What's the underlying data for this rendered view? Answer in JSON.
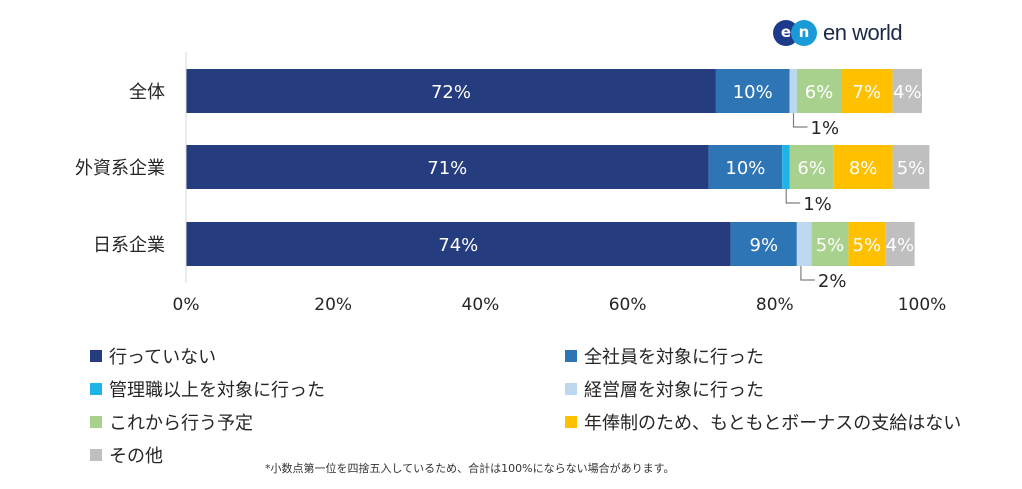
{
  "logo": {
    "mark": "en",
    "text": "en world"
  },
  "footnote": "*小数点第一位を四捨五入しているため、合計は100%にならない場合があります。",
  "chart_data": {
    "type": "bar",
    "orientation": "horizontal",
    "stacked": true,
    "percent_stacked": true,
    "categories": [
      "全体",
      "外資系企業",
      "日系企業"
    ],
    "series": [
      {
        "name": "行っていない",
        "color": "#253c7e",
        "values": [
          72,
          71,
          74
        ],
        "labels": [
          "72%",
          "71%",
          "74%"
        ]
      },
      {
        "name": "全社員を対象に行った",
        "color": "#2e75b6",
        "values": [
          10,
          10,
          9
        ],
        "labels": [
          "10%",
          "10%",
          "9%"
        ]
      },
      {
        "name": "管理職以上を対象に行った",
        "color": "#1fb4e8",
        "values": [
          0,
          1,
          0
        ],
        "labels": [
          "",
          "",
          ""
        ]
      },
      {
        "name": "経営層を対象に行った",
        "color": "#bdd7ee",
        "values": [
          1,
          0,
          2
        ],
        "labels": [
          "",
          "",
          ""
        ]
      },
      {
        "name": "これから行う予定",
        "color": "#a9d18e",
        "values": [
          6,
          6,
          5
        ],
        "labels": [
          "6%",
          "6%",
          "5%"
        ]
      },
      {
        "name": "年俸制のため、もともとボーナスの支給はない",
        "color": "#ffc000",
        "values": [
          7,
          8,
          5
        ],
        "labels": [
          "7%",
          "8%",
          "5%"
        ]
      },
      {
        "name": "その他",
        "color": "#bfbfbf",
        "values": [
          4,
          5,
          4
        ],
        "labels": [
          "4%",
          "5%",
          "4%"
        ]
      }
    ],
    "callouts": [
      {
        "category": 0,
        "series": 3,
        "text": "1%"
      },
      {
        "category": 1,
        "series": 2,
        "text": "1%"
      },
      {
        "category": 2,
        "series": 3,
        "text": "2%"
      }
    ],
    "xaxis": {
      "ticks": [
        0,
        20,
        40,
        60,
        80,
        100
      ],
      "tick_labels": [
        "0%",
        "20%",
        "40%",
        "60%",
        "80%",
        "100%"
      ],
      "range": [
        0,
        100
      ]
    },
    "grid": false,
    "legend_position": "bottom"
  }
}
